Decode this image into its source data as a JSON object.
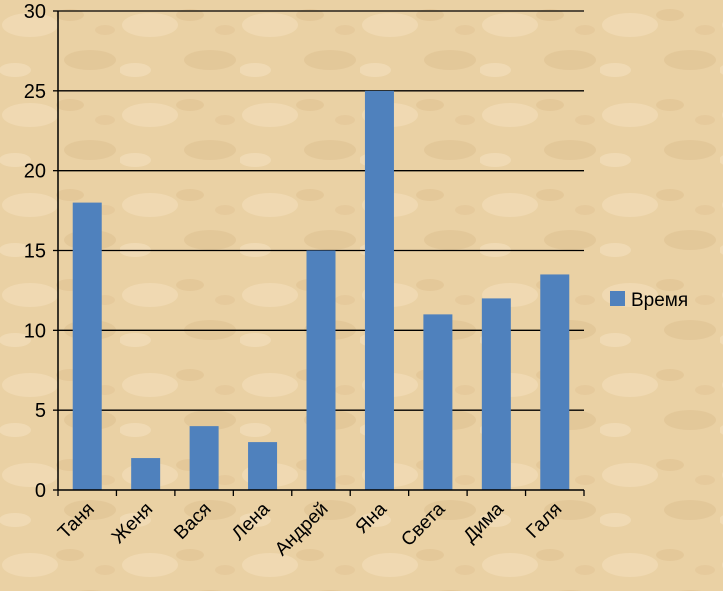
{
  "chart_data": {
    "type": "bar",
    "categories": [
      "Таня",
      "Женя",
      "Вася",
      "Лена",
      "Андрей",
      "Яна",
      "Света",
      "Дима",
      "Галя"
    ],
    "series": [
      {
        "name": "Время",
        "values": [
          18,
          2,
          4,
          3,
          15,
          25,
          11,
          12,
          13.5
        ],
        "color": "#4f81bd"
      }
    ],
    "title": "",
    "xlabel": "",
    "ylabel": "",
    "ylim": [
      0,
      30
    ],
    "yticks": [
      0,
      5,
      10,
      15,
      20,
      25,
      30
    ],
    "grid": true,
    "legend": "right"
  }
}
